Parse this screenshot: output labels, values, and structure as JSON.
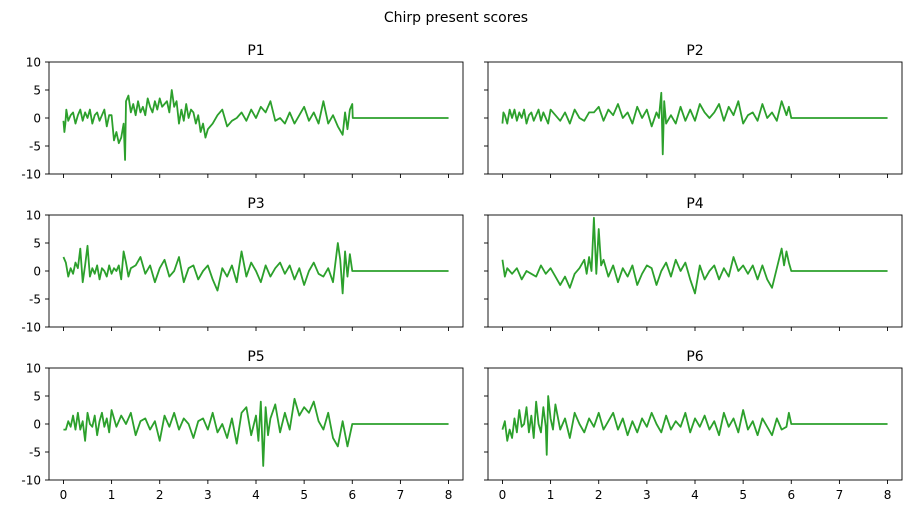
{
  "figure_title": "Chirp present scores",
  "chart_data": {
    "type": "line",
    "layout": "3x2 grid, shared x and y axes",
    "color": "#2ca02c",
    "xlim": [
      -0.3,
      8.3
    ],
    "ylim": [
      -10,
      10
    ],
    "xticks": [
      0,
      1,
      2,
      3,
      4,
      5,
      6,
      7,
      8
    ],
    "yticks": [
      10,
      5,
      0,
      -5,
      -10
    ],
    "grid": false,
    "panels": [
      {
        "title": "P1",
        "x": [
          0,
          0.02,
          0.04,
          0.06,
          0.1,
          0.15,
          0.2,
          0.25,
          0.3,
          0.35,
          0.4,
          0.45,
          0.5,
          0.55,
          0.6,
          0.65,
          0.7,
          0.75,
          0.8,
          0.85,
          0.9,
          0.95,
          1.0,
          1.05,
          1.1,
          1.15,
          1.2,
          1.25,
          1.28,
          1.3,
          1.35,
          1.4,
          1.45,
          1.5,
          1.55,
          1.6,
          1.65,
          1.7,
          1.75,
          1.8,
          1.85,
          1.9,
          1.95,
          2.0,
          2.05,
          2.1,
          2.15,
          2.2,
          2.25,
          2.3,
          2.35,
          2.4,
          2.45,
          2.5,
          2.55,
          2.6,
          2.65,
          2.7,
          2.75,
          2.8,
          2.85,
          2.9,
          2.95,
          3.0,
          3.1,
          3.2,
          3.3,
          3.4,
          3.5,
          3.6,
          3.7,
          3.8,
          3.9,
          4.0,
          4.1,
          4.2,
          4.3,
          4.4,
          4.5,
          4.6,
          4.7,
          4.8,
          4.9,
          5.0,
          5.1,
          5.2,
          5.3,
          5.4,
          5.5,
          5.6,
          5.7,
          5.8,
          5.85,
          5.9,
          5.95,
          6.0,
          6.01,
          7.0,
          8.0
        ],
        "y": [
          -0.5,
          -2.5,
          -1.0,
          1.5,
          -0.5,
          0.5,
          1.0,
          -1.0,
          0.5,
          1.5,
          -0.5,
          1.0,
          0.0,
          1.5,
          -1.0,
          0.5,
          1.0,
          -0.5,
          0.5,
          1.5,
          -1.5,
          0.5,
          0.5,
          -4.0,
          -2.5,
          -4.5,
          -3.5,
          -1.0,
          -7.5,
          3.0,
          4.0,
          1.0,
          2.5,
          0.5,
          3.0,
          1.0,
          2.0,
          0.5,
          3.5,
          2.0,
          1.0,
          3.0,
          1.5,
          3.5,
          2.0,
          2.5,
          3.0,
          1.0,
          5.0,
          2.0,
          3.0,
          -1.0,
          1.5,
          -0.5,
          2.5,
          0.0,
          1.5,
          1.0,
          -1.0,
          0.5,
          -2.5,
          -1.0,
          -3.5,
          -2.0,
          -1.0,
          0.5,
          1.5,
          -1.5,
          -0.5,
          0.0,
          1.0,
          -0.5,
          1.5,
          0.0,
          2.0,
          1.0,
          3.0,
          -0.5,
          0.0,
          -1.0,
          1.0,
          -1.0,
          0.5,
          2.0,
          -0.5,
          1.0,
          -1.0,
          3.0,
          -1.0,
          0.5,
          -1.5,
          -3.0,
          1.0,
          -2.0,
          1.5,
          2.5,
          0.0,
          0.0,
          0.0
        ]
      },
      {
        "title": "P2",
        "x": [
          0,
          0.02,
          0.05,
          0.1,
          0.15,
          0.2,
          0.25,
          0.3,
          0.35,
          0.4,
          0.45,
          0.5,
          0.55,
          0.6,
          0.65,
          0.7,
          0.75,
          0.8,
          0.85,
          0.9,
          0.95,
          1.0,
          1.1,
          1.2,
          1.3,
          1.4,
          1.5,
          1.6,
          1.7,
          1.8,
          1.9,
          2.0,
          2.1,
          2.2,
          2.3,
          2.4,
          2.5,
          2.6,
          2.7,
          2.8,
          2.9,
          3.0,
          3.1,
          3.2,
          3.25,
          3.3,
          3.33,
          3.36,
          3.4,
          3.5,
          3.6,
          3.7,
          3.8,
          3.9,
          4.0,
          4.1,
          4.2,
          4.3,
          4.4,
          4.5,
          4.6,
          4.7,
          4.8,
          4.9,
          5.0,
          5.1,
          5.2,
          5.3,
          5.4,
          5.5,
          5.6,
          5.7,
          5.8,
          5.9,
          5.95,
          6.0,
          6.01,
          7.0,
          8.0
        ],
        "y": [
          -1.0,
          1.0,
          0.5,
          -1.0,
          1.5,
          0.0,
          1.5,
          -0.5,
          1.0,
          0.0,
          1.5,
          -1.0,
          0.5,
          1.0,
          -0.5,
          0.5,
          1.5,
          -0.5,
          1.0,
          0.0,
          -1.0,
          1.5,
          0.5,
          -0.5,
          1.0,
          -1.0,
          1.5,
          0.0,
          -0.5,
          1.0,
          1.0,
          2.0,
          -0.5,
          1.5,
          0.5,
          2.5,
          0.0,
          1.0,
          -1.0,
          2.0,
          0.0,
          1.5,
          -1.5,
          1.0,
          0.0,
          4.5,
          -6.5,
          3.0,
          -1.0,
          0.5,
          -1.0,
          2.0,
          -0.5,
          1.5,
          -0.5,
          2.5,
          1.0,
          0.0,
          1.0,
          2.5,
          -0.5,
          2.0,
          0.5,
          3.0,
          -1.0,
          0.5,
          1.0,
          -0.5,
          2.5,
          0.0,
          1.0,
          -0.5,
          3.0,
          0.5,
          2.0,
          0.0,
          0.0,
          0.0,
          0.0
        ]
      },
      {
        "title": "P3",
        "x": [
          0,
          0.05,
          0.1,
          0.15,
          0.2,
          0.25,
          0.3,
          0.35,
          0.4,
          0.45,
          0.5,
          0.55,
          0.6,
          0.65,
          0.7,
          0.75,
          0.8,
          0.85,
          0.9,
          0.95,
          1.0,
          1.05,
          1.1,
          1.15,
          1.2,
          1.25,
          1.3,
          1.35,
          1.4,
          1.5,
          1.6,
          1.7,
          1.8,
          1.9,
          2.0,
          2.1,
          2.2,
          2.3,
          2.4,
          2.5,
          2.6,
          2.7,
          2.8,
          2.9,
          3.0,
          3.1,
          3.2,
          3.3,
          3.4,
          3.5,
          3.6,
          3.7,
          3.8,
          3.9,
          4.0,
          4.1,
          4.2,
          4.3,
          4.4,
          4.5,
          4.6,
          4.7,
          4.8,
          4.9,
          5.0,
          5.1,
          5.2,
          5.3,
          5.4,
          5.5,
          5.6,
          5.7,
          5.75,
          5.8,
          5.85,
          5.9,
          5.95,
          6.0,
          6.01,
          7.0,
          8.0
        ],
        "y": [
          2.5,
          1.5,
          -1.0,
          0.5,
          -0.5,
          1.5,
          0.5,
          4.0,
          -2.0,
          1.0,
          4.5,
          -1.0,
          0.5,
          -0.5,
          1.0,
          -1.5,
          0.5,
          0.0,
          -1.0,
          1.0,
          -0.5,
          0.5,
          0.0,
          1.0,
          -1.5,
          3.5,
          1.5,
          -1.0,
          0.5,
          1.0,
          2.5,
          -0.5,
          1.0,
          -2.0,
          0.5,
          2.0,
          -1.0,
          0.0,
          2.5,
          -2.0,
          0.5,
          1.0,
          -1.5,
          0.0,
          1.0,
          -1.5,
          -3.5,
          0.5,
          -1.0,
          1.0,
          -2.0,
          3.5,
          -1.0,
          1.5,
          0.0,
          -2.0,
          1.0,
          -1.0,
          0.5,
          1.5,
          -0.5,
          1.0,
          -1.5,
          0.5,
          -2.5,
          0.0,
          1.5,
          -0.5,
          -1.0,
          0.5,
          -2.0,
          5.0,
          2.0,
          -4.0,
          3.5,
          -1.0,
          3.0,
          0.0,
          0.0,
          0.0,
          0.0
        ]
      },
      {
        "title": "P4",
        "x": [
          0,
          0.05,
          0.1,
          0.2,
          0.3,
          0.4,
          0.5,
          0.6,
          0.7,
          0.8,
          0.9,
          1.0,
          1.1,
          1.2,
          1.3,
          1.4,
          1.5,
          1.6,
          1.7,
          1.75,
          1.8,
          1.85,
          1.9,
          1.95,
          2.0,
          2.05,
          2.1,
          2.2,
          2.3,
          2.4,
          2.5,
          2.6,
          2.7,
          2.8,
          2.9,
          3.0,
          3.1,
          3.2,
          3.3,
          3.4,
          3.5,
          3.6,
          3.7,
          3.8,
          3.9,
          4.0,
          4.1,
          4.2,
          4.3,
          4.4,
          4.5,
          4.6,
          4.7,
          4.8,
          4.9,
          5.0,
          5.1,
          5.2,
          5.3,
          5.4,
          5.5,
          5.6,
          5.7,
          5.8,
          5.85,
          5.9,
          5.95,
          6.0,
          6.01,
          7.0,
          8.0
        ],
        "y": [
          2.0,
          -1.0,
          0.5,
          -0.5,
          0.5,
          -1.5,
          0.0,
          -0.5,
          -1.0,
          1.0,
          -0.5,
          0.5,
          -1.0,
          -2.5,
          -1.0,
          -3.0,
          -0.5,
          0.5,
          2.0,
          -0.5,
          2.5,
          0.0,
          9.5,
          -0.5,
          7.5,
          1.0,
          2.0,
          -1.0,
          1.0,
          -2.0,
          0.5,
          -1.0,
          1.0,
          -2.5,
          -0.5,
          1.0,
          0.5,
          -2.5,
          0.0,
          1.5,
          -1.0,
          2.0,
          0.0,
          1.5,
          -1.5,
          -4.0,
          1.0,
          -1.5,
          0.0,
          1.0,
          -1.5,
          0.5,
          -1.0,
          2.5,
          0.0,
          1.0,
          -0.5,
          1.0,
          -1.5,
          1.0,
          -1.5,
          -3.0,
          0.5,
          4.0,
          1.0,
          3.5,
          1.5,
          0.0,
          0.0,
          0.0,
          0.0
        ]
      },
      {
        "title": "P5",
        "x": [
          0,
          0.05,
          0.1,
          0.15,
          0.2,
          0.25,
          0.3,
          0.35,
          0.4,
          0.45,
          0.5,
          0.55,
          0.6,
          0.65,
          0.7,
          0.75,
          0.8,
          0.85,
          0.9,
          0.95,
          1.0,
          1.1,
          1.2,
          1.3,
          1.4,
          1.5,
          1.6,
          1.7,
          1.8,
          1.9,
          2.0,
          2.1,
          2.2,
          2.3,
          2.4,
          2.5,
          2.6,
          2.7,
          2.8,
          2.9,
          3.0,
          3.1,
          3.2,
          3.3,
          3.4,
          3.5,
          3.6,
          3.7,
          3.8,
          3.9,
          4.0,
          4.05,
          4.1,
          4.15,
          4.2,
          4.25,
          4.3,
          4.4,
          4.5,
          4.6,
          4.7,
          4.8,
          4.9,
          5.0,
          5.1,
          5.2,
          5.3,
          5.4,
          5.5,
          5.6,
          5.7,
          5.8,
          5.9,
          6.0,
          6.01,
          7.0,
          8.0
        ],
        "y": [
          -1.0,
          -1.0,
          0.5,
          -0.5,
          1.5,
          -1.0,
          2.0,
          -1.0,
          0.5,
          -3.0,
          2.0,
          0.0,
          -0.5,
          1.5,
          -2.0,
          0.5,
          2.0,
          -0.5,
          1.0,
          -1.5,
          2.5,
          -0.5,
          1.5,
          0.0,
          2.0,
          -2.0,
          0.5,
          1.0,
          -1.0,
          0.5,
          -3.0,
          1.5,
          -0.5,
          2.0,
          -1.0,
          1.0,
          0.0,
          -2.5,
          0.5,
          1.0,
          -1.0,
          2.0,
          -1.5,
          0.0,
          -2.5,
          1.0,
          -3.5,
          2.0,
          3.0,
          -2.0,
          1.5,
          -3.0,
          4.0,
          -7.5,
          3.0,
          -2.0,
          1.0,
          3.5,
          -1.5,
          2.0,
          -1.0,
          4.5,
          1.5,
          3.0,
          2.0,
          4.0,
          0.5,
          -1.0,
          2.0,
          -2.5,
          -4.0,
          0.5,
          -4.0,
          0.0,
          0.0,
          0.0,
          0.0
        ]
      },
      {
        "title": "P6",
        "x": [
          0,
          0.05,
          0.1,
          0.15,
          0.2,
          0.25,
          0.3,
          0.35,
          0.4,
          0.45,
          0.5,
          0.55,
          0.6,
          0.65,
          0.7,
          0.75,
          0.8,
          0.85,
          0.9,
          0.92,
          0.95,
          1.0,
          1.05,
          1.1,
          1.2,
          1.3,
          1.4,
          1.5,
          1.6,
          1.7,
          1.8,
          1.9,
          2.0,
          2.1,
          2.2,
          2.3,
          2.4,
          2.5,
          2.6,
          2.7,
          2.8,
          2.9,
          3.0,
          3.1,
          3.2,
          3.3,
          3.4,
          3.5,
          3.6,
          3.7,
          3.8,
          3.9,
          4.0,
          4.1,
          4.2,
          4.3,
          4.4,
          4.5,
          4.6,
          4.7,
          4.8,
          4.9,
          5.0,
          5.1,
          5.2,
          5.3,
          5.4,
          5.5,
          5.6,
          5.7,
          5.8,
          5.9,
          5.95,
          6.0,
          6.01,
          7.0,
          8.0
        ],
        "y": [
          -1.0,
          0.5,
          -3.0,
          -1.0,
          -2.5,
          1.0,
          -1.5,
          2.5,
          -0.5,
          0.0,
          3.0,
          -1.5,
          1.5,
          -2.5,
          4.0,
          0.0,
          -1.5,
          3.0,
          -0.5,
          -5.5,
          5.0,
          1.0,
          -1.0,
          3.5,
          -1.0,
          1.0,
          -2.5,
          2.0,
          0.0,
          -1.5,
          1.0,
          -0.5,
          2.0,
          -1.0,
          0.5,
          2.0,
          -1.0,
          1.0,
          -2.0,
          0.5,
          -1.5,
          1.0,
          -0.5,
          2.0,
          0.0,
          -1.5,
          1.5,
          -1.0,
          0.5,
          -0.5,
          2.0,
          -1.5,
          1.0,
          -0.5,
          1.5,
          -1.0,
          0.5,
          -2.0,
          2.0,
          -0.5,
          1.0,
          -1.5,
          2.5,
          -1.0,
          0.5,
          -2.0,
          1.0,
          -0.5,
          -2.0,
          1.0,
          -1.0,
          -0.5,
          2.0,
          0.0,
          0.0,
          0.0,
          0.0
        ]
      }
    ]
  }
}
